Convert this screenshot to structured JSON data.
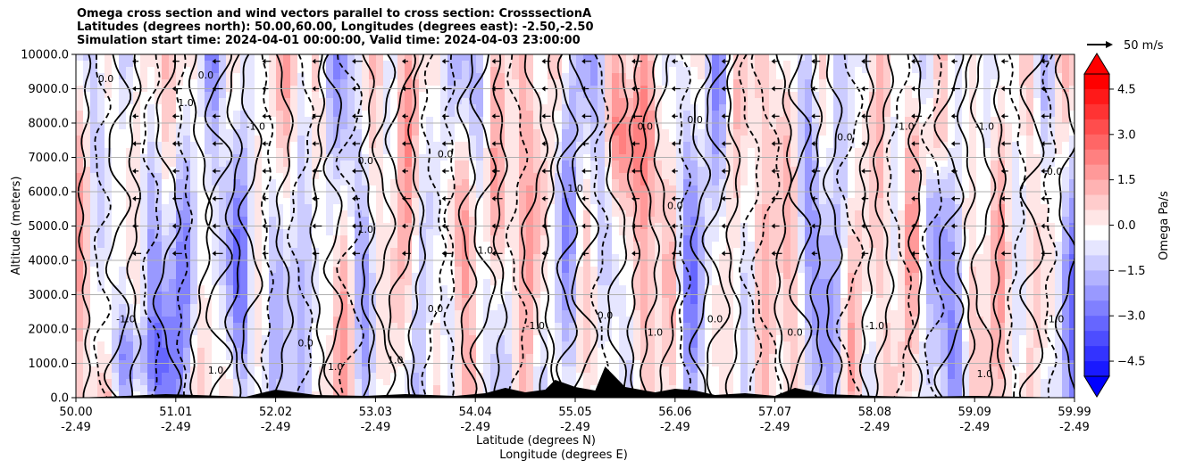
{
  "title_lines": [
    "Omega cross section and wind vectors parallel to cross section: CrosssectionA",
    "Latitudes (degrees north): 50.00,60.00, Longitudes (degrees east): -2.50,-2.50",
    "Simulation start time: 2024-04-01 00:00:00, Valid time: 2024-04-03 23:00:00"
  ],
  "chart_data": {
    "type": "heatmap",
    "title": "Omega cross section and wind vectors parallel to cross section: CrosssectionA",
    "ylabel": "Altitude (meters)",
    "xlabel_lines": [
      "Latitude (degrees N)",
      "Longitude (degrees E)"
    ],
    "ylim": [
      0,
      10000
    ],
    "y_ticks": [
      "0.0",
      "1000.0",
      "2000.0",
      "3000.0",
      "4000.0",
      "5000.0",
      "6000.0",
      "7000.0",
      "8000.0",
      "9000.0",
      "10000.0"
    ],
    "x_ticks": [
      {
        "lat": "50.00",
        "lon": "-2.49"
      },
      {
        "lat": "51.01",
        "lon": "-2.49"
      },
      {
        "lat": "52.02",
        "lon": "-2.49"
      },
      {
        "lat": "53.03",
        "lon": "-2.49"
      },
      {
        "lat": "54.04",
        "lon": "-2.49"
      },
      {
        "lat": "55.05",
        "lon": "-2.49"
      },
      {
        "lat": "56.06",
        "lon": "-2.49"
      },
      {
        "lat": "57.07",
        "lon": "-2.49"
      },
      {
        "lat": "58.08",
        "lon": "-2.49"
      },
      {
        "lat": "59.09",
        "lon": "-2.49"
      },
      {
        "lat": "59.99",
        "lon": "-2.49"
      }
    ],
    "grid": "horizontal",
    "colorbar": {
      "label": "Omega Pa/s",
      "ticks": [
        "4.5",
        "3.0",
        "1.5",
        "0.0",
        "−1.5",
        "−3.0",
        "−4.5"
      ],
      "range": [
        -5,
        5
      ],
      "extend": "both"
    },
    "vector_key": "50 m/s",
    "contour_labels": [
      "0.0",
      "1.0",
      "-1.0"
    ],
    "colors": {
      "positive": "#ff0000",
      "negative": "#0000ff",
      "neutral": "#ffffff",
      "terrain": "#000000"
    }
  }
}
